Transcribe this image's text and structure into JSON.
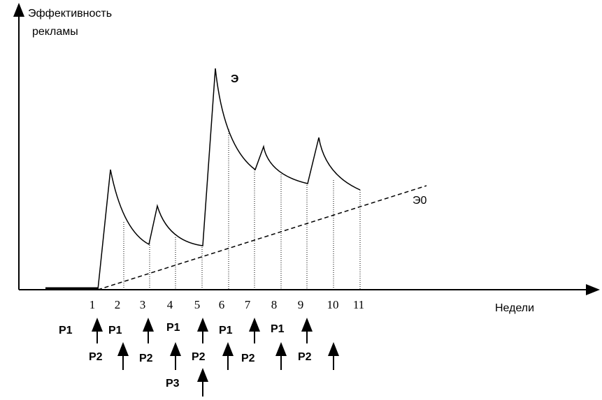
{
  "axes": {
    "y_label_lines": [
      "Эффективность",
      "рекламы"
    ],
    "x_label": "Недели"
  },
  "curves": {
    "effect": "Э",
    "baseline": "Э0"
  },
  "weeks": [
    "1",
    "2",
    "3",
    "4",
    "5",
    "6",
    "7",
    "8",
    "9",
    "10",
    "11"
  ],
  "schedule": {
    "row1": [
      "P1",
      "P1",
      "P1",
      "P1",
      "P1"
    ],
    "row2": [
      "P2",
      "P2",
      "P2",
      "P2",
      "P2"
    ],
    "row3": [
      "P3"
    ]
  }
}
